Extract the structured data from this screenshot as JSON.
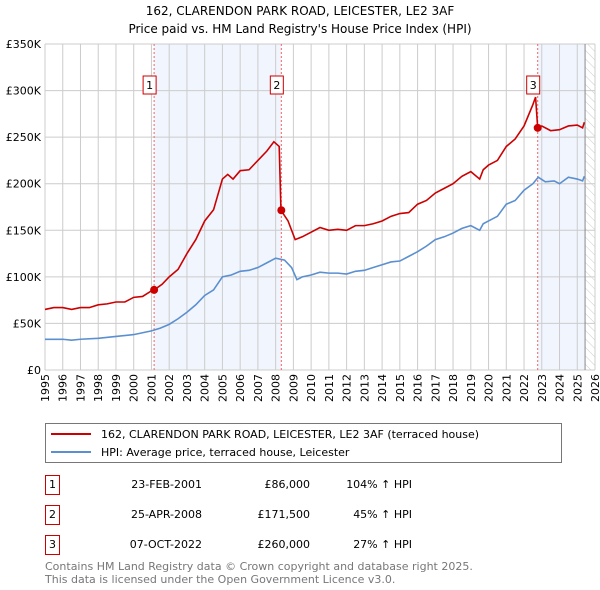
{
  "chart_data": {
    "type": "line",
    "title": "162, CLARENDON PARK ROAD, LEICESTER, LE2 3AF",
    "subtitle": "Price paid vs. HM Land Registry's House Price Index (HPI)",
    "xlim": [
      1995,
      2026
    ],
    "ylim": [
      0,
      350000
    ],
    "x_ticks": [
      1995,
      1996,
      1997,
      1998,
      1999,
      2000,
      2001,
      2002,
      2003,
      2004,
      2005,
      2006,
      2007,
      2008,
      2009,
      2010,
      2011,
      2012,
      2013,
      2014,
      2015,
      2016,
      2017,
      2018,
      2019,
      2020,
      2021,
      2022,
      2023,
      2024,
      2025,
      2026
    ],
    "y_ticks": [
      {
        "v": 0,
        "label": "£0"
      },
      {
        "v": 50000,
        "label": "£50K"
      },
      {
        "v": 100000,
        "label": "£100K"
      },
      {
        "v": 150000,
        "label": "£150K"
      },
      {
        "v": 200000,
        "label": "£200K"
      },
      {
        "v": 250000,
        "label": "£250K"
      },
      {
        "v": 300000,
        "label": "£300K"
      },
      {
        "v": 350000,
        "label": "£350K"
      }
    ],
    "grid": true,
    "series": [
      {
        "name": "162, CLARENDON PARK ROAD, LEICESTER, LE2 3AF (terraced house)",
        "color": "#cc0000",
        "points": [
          [
            1995,
            65000
          ],
          [
            1995.5,
            67000
          ],
          [
            1996,
            67000
          ],
          [
            1996.5,
            65000
          ],
          [
            1997,
            67000
          ],
          [
            1997.5,
            67000
          ],
          [
            1998,
            70000
          ],
          [
            1998.5,
            71000
          ],
          [
            1999,
            73000
          ],
          [
            1999.5,
            73000
          ],
          [
            2000,
            78000
          ],
          [
            2000.5,
            79000
          ],
          [
            2001,
            85000
          ],
          [
            2001.15,
            86000
          ],
          [
            2001.6,
            92000
          ],
          [
            2002,
            100000
          ],
          [
            2002.5,
            108000
          ],
          [
            2003,
            125000
          ],
          [
            2003.5,
            140000
          ],
          [
            2004,
            160000
          ],
          [
            2004.5,
            172000
          ],
          [
            2005,
            205000
          ],
          [
            2005.3,
            210000
          ],
          [
            2005.6,
            205000
          ],
          [
            2006,
            214000
          ],
          [
            2006.5,
            215000
          ],
          [
            2007,
            225000
          ],
          [
            2007.5,
            235000
          ],
          [
            2007.9,
            245000
          ],
          [
            2008.2,
            240000
          ],
          [
            2008.3,
            171500
          ],
          [
            2008.7,
            160000
          ],
          [
            2009.1,
            140000
          ],
          [
            2009.5,
            143000
          ],
          [
            2010,
            148000
          ],
          [
            2010.5,
            153000
          ],
          [
            2011,
            150000
          ],
          [
            2011.5,
            151000
          ],
          [
            2012,
            150000
          ],
          [
            2012.5,
            155000
          ],
          [
            2013,
            155000
          ],
          [
            2013.5,
            157000
          ],
          [
            2014,
            160000
          ],
          [
            2014.5,
            165000
          ],
          [
            2015,
            168000
          ],
          [
            2015.5,
            169000
          ],
          [
            2016,
            178000
          ],
          [
            2016.5,
            182000
          ],
          [
            2017,
            190000
          ],
          [
            2017.5,
            195000
          ],
          [
            2018,
            200000
          ],
          [
            2018.5,
            208000
          ],
          [
            2019,
            213000
          ],
          [
            2019.5,
            205000
          ],
          [
            2019.7,
            215000
          ],
          [
            2020,
            220000
          ],
          [
            2020.5,
            225000
          ],
          [
            2021,
            240000
          ],
          [
            2021.5,
            248000
          ],
          [
            2022,
            262000
          ],
          [
            2022.5,
            285000
          ],
          [
            2022.65,
            293000
          ],
          [
            2022.77,
            260000
          ],
          [
            2023,
            262000
          ],
          [
            2023.5,
            257000
          ],
          [
            2024,
            258000
          ],
          [
            2024.5,
            262000
          ],
          [
            2025,
            263000
          ],
          [
            2025.3,
            260000
          ],
          [
            2025.4,
            266000
          ]
        ]
      },
      {
        "name": "HPI: Average price, terraced house, Leicester",
        "color": "#5b8fd0",
        "points": [
          [
            1995,
            33000
          ],
          [
            1996,
            33000
          ],
          [
            1996.5,
            32000
          ],
          [
            1997,
            33000
          ],
          [
            1998,
            34000
          ],
          [
            1999,
            36000
          ],
          [
            2000,
            38000
          ],
          [
            2000.5,
            40000
          ],
          [
            2001,
            42000
          ],
          [
            2001.5,
            45000
          ],
          [
            2002,
            49000
          ],
          [
            2002.5,
            55000
          ],
          [
            2003,
            62000
          ],
          [
            2003.5,
            70000
          ],
          [
            2004,
            80000
          ],
          [
            2004.5,
            86000
          ],
          [
            2005,
            100000
          ],
          [
            2005.5,
            102000
          ],
          [
            2006,
            106000
          ],
          [
            2006.5,
            107000
          ],
          [
            2007,
            110000
          ],
          [
            2007.5,
            115000
          ],
          [
            2008,
            120000
          ],
          [
            2008.5,
            118000
          ],
          [
            2008.9,
            110000
          ],
          [
            2009.2,
            97000
          ],
          [
            2009.5,
            100000
          ],
          [
            2010,
            102000
          ],
          [
            2010.5,
            105000
          ],
          [
            2011,
            104000
          ],
          [
            2011.5,
            104000
          ],
          [
            2012,
            103000
          ],
          [
            2012.5,
            106000
          ],
          [
            2013,
            107000
          ],
          [
            2013.5,
            110000
          ],
          [
            2014,
            113000
          ],
          [
            2014.5,
            116000
          ],
          [
            2015,
            117000
          ],
          [
            2015.5,
            122000
          ],
          [
            2016,
            127000
          ],
          [
            2016.5,
            133000
          ],
          [
            2017,
            140000
          ],
          [
            2017.5,
            143000
          ],
          [
            2018,
            147000
          ],
          [
            2018.5,
            152000
          ],
          [
            2019,
            155000
          ],
          [
            2019.5,
            150000
          ],
          [
            2019.7,
            157000
          ],
          [
            2020,
            160000
          ],
          [
            2020.5,
            165000
          ],
          [
            2021,
            178000
          ],
          [
            2021.5,
            182000
          ],
          [
            2022,
            193000
          ],
          [
            2022.5,
            200000
          ],
          [
            2022.8,
            207000
          ],
          [
            2023.2,
            202000
          ],
          [
            2023.7,
            203000
          ],
          [
            2024,
            200000
          ],
          [
            2024.5,
            207000
          ],
          [
            2025,
            205000
          ],
          [
            2025.3,
            203000
          ],
          [
            2025.4,
            208000
          ]
        ]
      }
    ],
    "shaded_ranges": [
      [
        2001.15,
        2008.32
      ],
      [
        2022.77,
        2025.44
      ]
    ],
    "hatched_from": 2025.44,
    "sales": [
      {
        "id": "1",
        "x": 2001.15,
        "y": 86000,
        "date": "23-FEB-2001",
        "price": "£86,000",
        "hpi": "104% ↑ HPI"
      },
      {
        "id": "2",
        "x": 2008.32,
        "y": 171500,
        "date": "25-APR-2008",
        "price": "£171,500",
        "hpi": "45% ↑ HPI"
      },
      {
        "id": "3",
        "x": 2022.77,
        "y": 260000,
        "date": "07-OCT-2022",
        "price": "£260,000",
        "hpi": "27% ↑ HPI"
      }
    ],
    "legend_position": "bottom"
  },
  "footer": {
    "line1": "Contains HM Land Registry data © Crown copyright and database right 2025.",
    "line2": "This data is licensed under the Open Government Licence v3.0."
  }
}
